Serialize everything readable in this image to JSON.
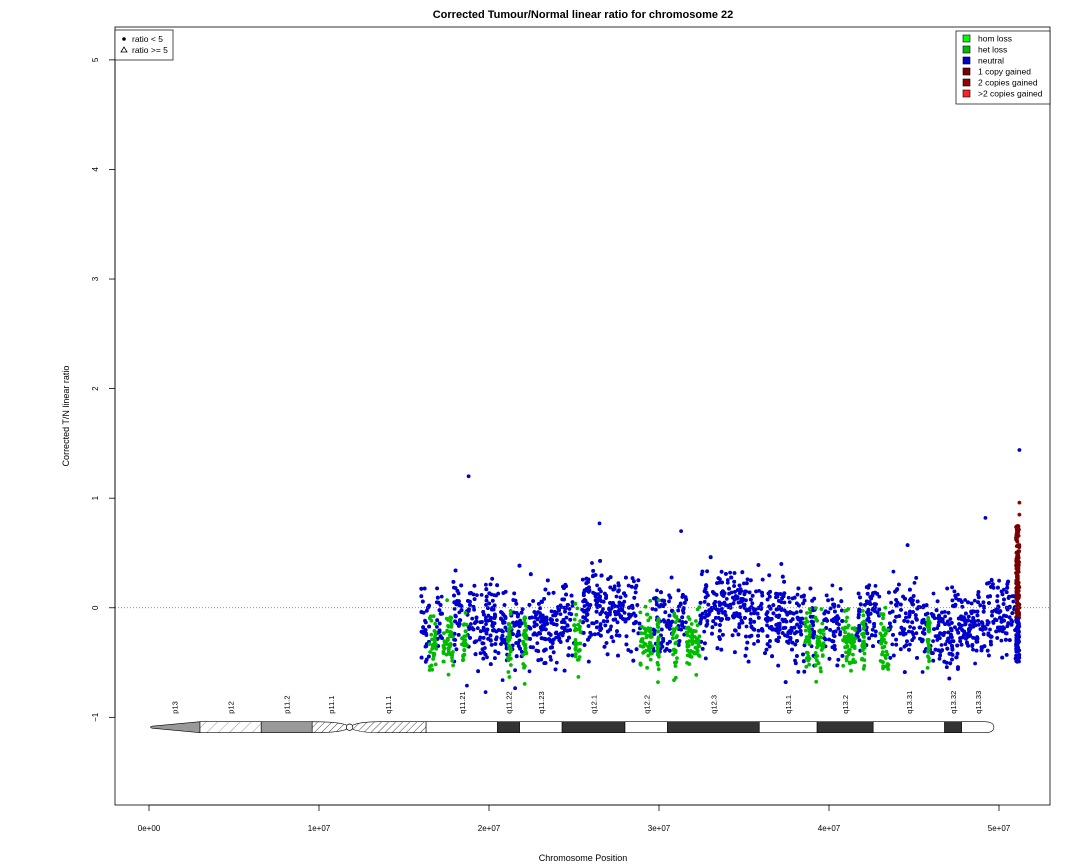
{
  "chart_data": {
    "type": "scatter",
    "title": "Corrected Tumour/Normal linear ratio for chromosome  22",
    "xlabel": "Chromosome Position",
    "ylabel": "Corrected T/N linear ratio",
    "xlim": [
      -2000000,
      53000000
    ],
    "ylim": [
      -1.8,
      5.3
    ],
    "x_ticks": [
      0,
      10000000,
      20000000,
      30000000,
      40000000,
      50000000
    ],
    "x_tick_labels": [
      "0e+00",
      "1e+07",
      "2e+07",
      "3e+07",
      "4e+07",
      "5e+07"
    ],
    "y_ticks": [
      -1,
      0,
      1,
      2,
      3,
      4,
      5
    ],
    "y_tick_labels": [
      "−1",
      "0",
      "1",
      "2",
      "3",
      "4",
      "5"
    ],
    "reference_line_y": 0,
    "shape_legend": {
      "position": "top-left",
      "items": [
        {
          "label": "ratio < 5",
          "symbol": "filled-circle"
        },
        {
          "label": "ratio >= 5",
          "symbol": "open-triangle"
        }
      ]
    },
    "legend": {
      "position": "top-right",
      "items": [
        {
          "label": "hom loss",
          "color": "#00ff00"
        },
        {
          "label": "het loss",
          "color": "#00bb00"
        },
        {
          "label": "neutral",
          "color": "#0000cc"
        },
        {
          "label": "1 copy gained",
          "color": "#7a0000"
        },
        {
          "label": "2 copies gained",
          "color": "#9a0000"
        },
        {
          "label": ">2 copies gained",
          "color": "#ff2222"
        }
      ]
    },
    "data_x_range": [
      16000000,
      51200000
    ],
    "neutral_band": [
      -0.55,
      0.35
    ],
    "het_loss_band": [
      -0.65,
      0.05
    ],
    "het_loss_segments": [
      [
        16500000,
        16900000
      ],
      [
        17300000,
        17900000
      ],
      [
        18400000,
        18700000
      ],
      [
        21100000,
        21300000
      ],
      [
        22000000,
        22200000
      ],
      [
        25000000,
        25400000
      ],
      [
        28900000,
        29600000
      ],
      [
        29900000,
        30000000
      ],
      [
        30800000,
        31100000
      ],
      [
        31600000,
        32400000
      ],
      [
        38600000,
        38900000
      ],
      [
        39200000,
        39700000
      ],
      [
        40800000,
        41600000
      ],
      [
        41900000,
        42100000
      ],
      [
        43000000,
        43500000
      ],
      [
        45800000,
        45900000
      ]
    ],
    "gain_segment": [
      51000000,
      51200000
    ],
    "gain_band": [
      -0.1,
      0.75
    ],
    "notable_points": [
      {
        "x": 18800000,
        "y": 1.2,
        "state": "neutral"
      },
      {
        "x": 51200000,
        "y": 1.44,
        "state": "neutral"
      },
      {
        "x": 49200000,
        "y": 0.82,
        "state": "neutral"
      },
      {
        "x": 31300000,
        "y": 0.7,
        "state": "neutral"
      },
      {
        "x": 26500000,
        "y": 0.77,
        "state": "neutral"
      },
      {
        "x": 51200000,
        "y": 0.96,
        "state": "2 copies gained"
      },
      {
        "x": 51200000,
        "y": 0.85,
        "state": "2 copies gained"
      },
      {
        "x": 18700000,
        "y": -0.71,
        "state": "neutral"
      },
      {
        "x": 19800000,
        "y": -0.77,
        "state": "neutral"
      },
      {
        "x": 20800000,
        "y": -0.66,
        "state": "neutral"
      }
    ],
    "ideogram": {
      "y": -1.09,
      "bands": [
        {
          "name": "p13",
          "start": 0,
          "end": 3000000,
          "stain": "stalk"
        },
        {
          "name": "p12",
          "start": 3000000,
          "end": 6600000,
          "stain": "hatch-light"
        },
        {
          "name": "p11.2",
          "start": 6600000,
          "end": 9600000,
          "stain": "gray"
        },
        {
          "name": "p11.1",
          "start": 9600000,
          "end": 11800000,
          "stain": "hatch"
        },
        {
          "name": "q11.1",
          "start": 11800000,
          "end": 16300000,
          "stain": "hatch"
        },
        {
          "name": "q11.21",
          "start": 16300000,
          "end": 20500000,
          "stain": "white"
        },
        {
          "name": "q11.22",
          "start": 20500000,
          "end": 21800000,
          "stain": "black"
        },
        {
          "name": "q11.23",
          "start": 21800000,
          "end": 24300000,
          "stain": "white"
        },
        {
          "name": "q12.1",
          "start": 24300000,
          "end": 28000000,
          "stain": "black"
        },
        {
          "name": "q12.2",
          "start": 28000000,
          "end": 30500000,
          "stain": "white"
        },
        {
          "name": "q12.3",
          "start": 30500000,
          "end": 35900000,
          "stain": "black"
        },
        {
          "name": "q13.1",
          "start": 35900000,
          "end": 39300000,
          "stain": "white"
        },
        {
          "name": "q13.2",
          "start": 39300000,
          "end": 42600000,
          "stain": "black"
        },
        {
          "name": "q13.31",
          "start": 42600000,
          "end": 46800000,
          "stain": "white"
        },
        {
          "name": "q13.32",
          "start": 46800000,
          "end": 47800000,
          "stain": "black"
        },
        {
          "name": "q13.33",
          "start": 47800000,
          "end": 49700000,
          "stain": "white"
        }
      ]
    }
  }
}
